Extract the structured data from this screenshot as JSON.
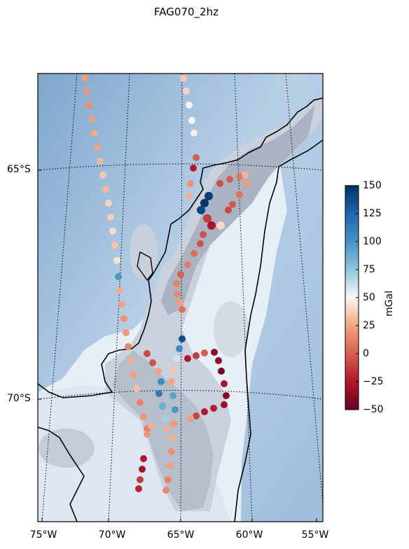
{
  "title": "FAG070_2hz",
  "map": {
    "lat_labels": [
      "65°S",
      "70°S"
    ],
    "lon_labels": [
      "75°W",
      "70°W",
      "65°W",
      "60°W",
      "55°W"
    ],
    "basemap": "shaded relief (blue ocean, white/grey ice)",
    "graticule": "dotted black lines"
  },
  "colorbar": {
    "label": "mGal",
    "colormap": "RdBu",
    "range": [
      -50,
      150
    ],
    "ticks": [
      "150",
      "125",
      "100",
      "75",
      "50",
      "25",
      "0",
      "−25",
      "−50"
    ],
    "tick_values": [
      150,
      125,
      100,
      75,
      50,
      25,
      0,
      -25,
      -50
    ]
  }
}
